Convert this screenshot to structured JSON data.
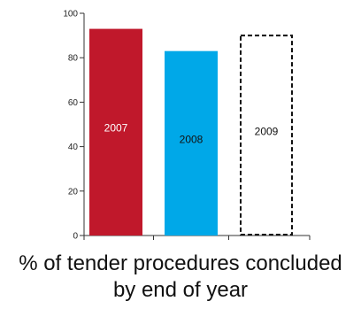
{
  "chart_data": {
    "type": "bar",
    "categories": [
      "2007",
      "2008",
      "2009"
    ],
    "values": [
      93,
      83,
      90
    ],
    "bar_styles": [
      "solid",
      "solid",
      "dashed-outline"
    ],
    "colors": [
      "#c0182b",
      "#00a8e8",
      "#ffffff"
    ],
    "label_colors": [
      "#ffffff",
      "#111111",
      "#111111"
    ],
    "ylim": [
      0,
      100
    ],
    "yticks": [
      0,
      20,
      40,
      60,
      80,
      100
    ],
    "grid": false,
    "caption_lines": [
      "% of tender procedures concluded",
      "by end of year"
    ]
  }
}
